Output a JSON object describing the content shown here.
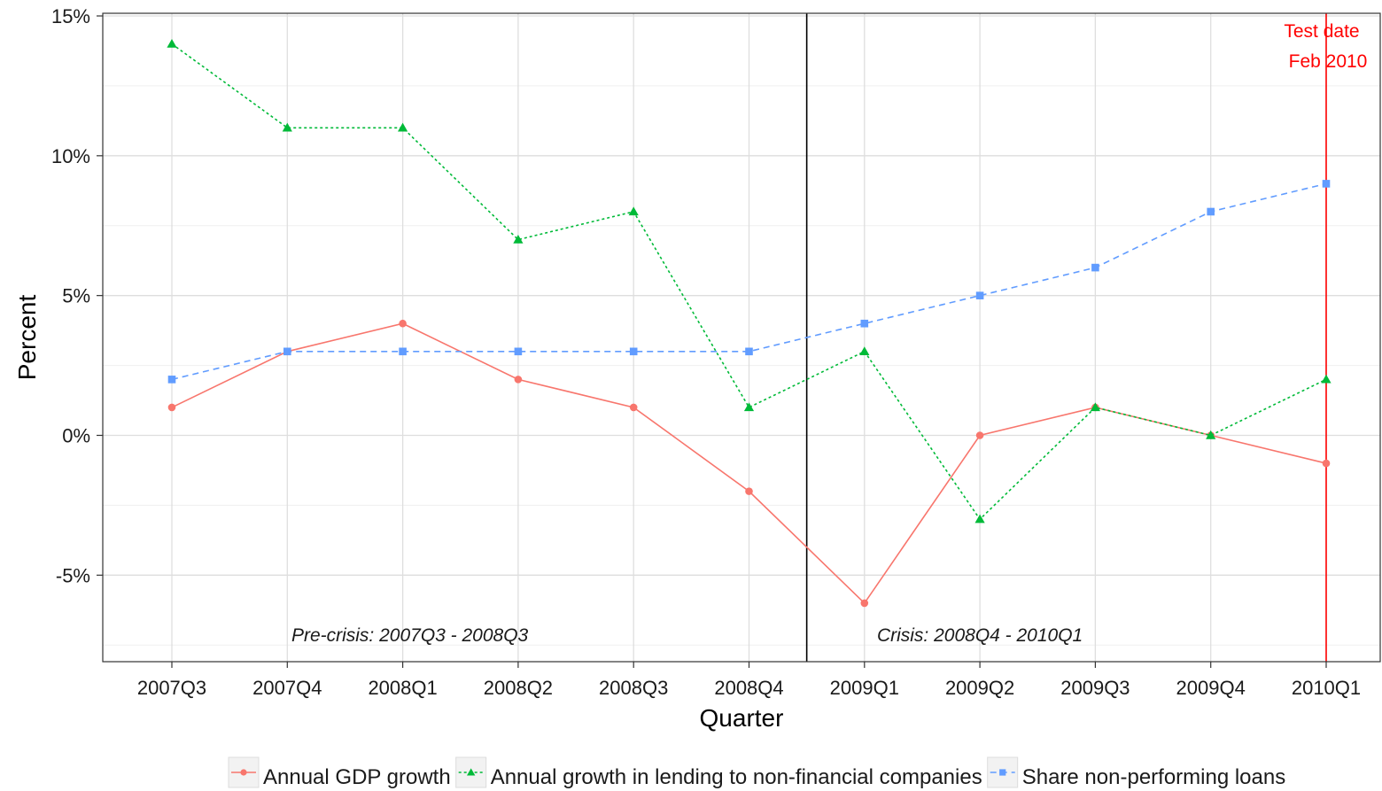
{
  "chart_data": {
    "type": "line",
    "xlabel": "Quarter",
    "ylabel": "Percent",
    "categories": [
      "2007Q3",
      "2007Q4",
      "2008Q1",
      "2008Q2",
      "2008Q3",
      "2008Q4",
      "2009Q1",
      "2009Q2",
      "2009Q3",
      "2009Q4",
      "2010Q1"
    ],
    "ylim": [
      -8,
      15
    ],
    "yticks": [
      -5,
      0,
      5,
      10,
      15
    ],
    "ytick_labels": [
      "-5%",
      "0%",
      "5%",
      "10%",
      "15%"
    ],
    "grid": true,
    "legend_position": "bottom",
    "series": [
      {
        "name": "Annual GDP growth",
        "color": "#F8766D",
        "marker": "circle",
        "linestyle": "solid",
        "values": [
          1,
          3,
          4,
          2,
          1,
          -2,
          -6,
          0,
          1,
          0,
          -1
        ]
      },
      {
        "name": "Annual growth in lending to non-financial companies",
        "color": "#00BA38",
        "marker": "triangle",
        "linestyle": "dotted",
        "values": [
          14,
          11,
          11,
          7,
          8,
          1,
          3,
          -3,
          1,
          0,
          2
        ]
      },
      {
        "name": "Share non-performing loans",
        "color": "#619CFF",
        "marker": "square",
        "linestyle": "dashed",
        "values": [
          2,
          3,
          3,
          3,
          3,
          3,
          4,
          5,
          6,
          8,
          9
        ]
      }
    ],
    "annotations": {
      "pre_crisis": "Pre-crisis: 2007Q3 - 2008Q3",
      "crisis": "Crisis: 2008Q4 - 2010Q1",
      "test_line1": "Test date",
      "test_line2": "Feb 2010"
    },
    "crisis_divider_x": 5.5,
    "test_date_x": 10,
    "annotation_colors": {
      "divider": "#000000",
      "test_date": "#ff0000"
    }
  }
}
